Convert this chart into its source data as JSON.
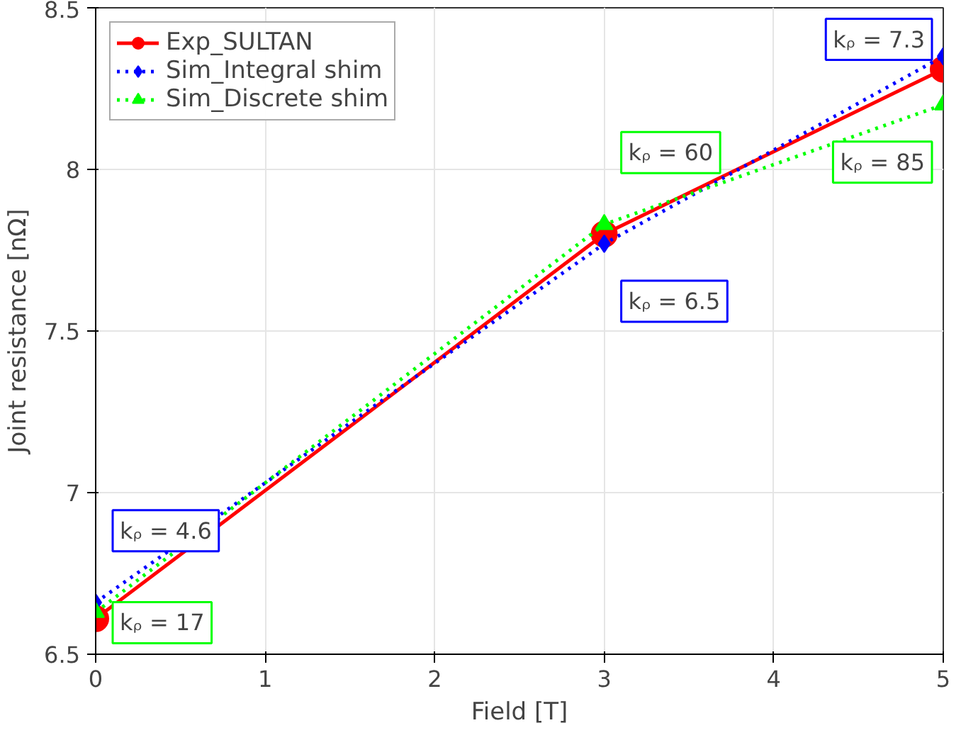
{
  "chart_data": {
    "type": "line",
    "xlabel": "Field [T]",
    "ylabel": "Joint resistance [nΩ]",
    "x": [
      0,
      3,
      5
    ],
    "series": [
      {
        "name": "Exp_SULTAN",
        "color": "#ff0000",
        "values": [
          6.61,
          7.8,
          8.31
        ],
        "marker": "circle",
        "line_style": "solid"
      },
      {
        "name": "Sim_Integral shim",
        "color": "#0000ff",
        "values": [
          6.66,
          7.77,
          8.35
        ],
        "marker": "diamond",
        "line_style": "dotted"
      },
      {
        "name": "Sim_Discrete shim",
        "color": "#00ff00",
        "values": [
          6.63,
          7.83,
          8.2
        ],
        "marker": "triangle",
        "line_style": "dotted"
      }
    ],
    "xlim": [
      0,
      5
    ],
    "ylim": [
      6.5,
      8.5
    ],
    "xticks": [
      0,
      1,
      2,
      3,
      4,
      5
    ],
    "yticks": [
      6.5,
      7,
      7.5,
      8,
      8.5
    ],
    "grid": true,
    "legend": "top left",
    "annotations": [
      {
        "text": "kᵨ = 4.6",
        "x": 0,
        "y": 6.66
      },
      {
        "text": "kᵨ = 17",
        "x": 0,
        "y": 6.63
      },
      {
        "text": "kᵨ = 6.5",
        "x": 3,
        "y": 7.77
      },
      {
        "text": "kᵨ = 60",
        "x": 3,
        "y": 7.83
      },
      {
        "text": "kᵨ = 7.3",
        "x": 5,
        "y": 8.35
      },
      {
        "text": "kᵨ = 85",
        "x": 5,
        "y": 8.2
      }
    ]
  }
}
